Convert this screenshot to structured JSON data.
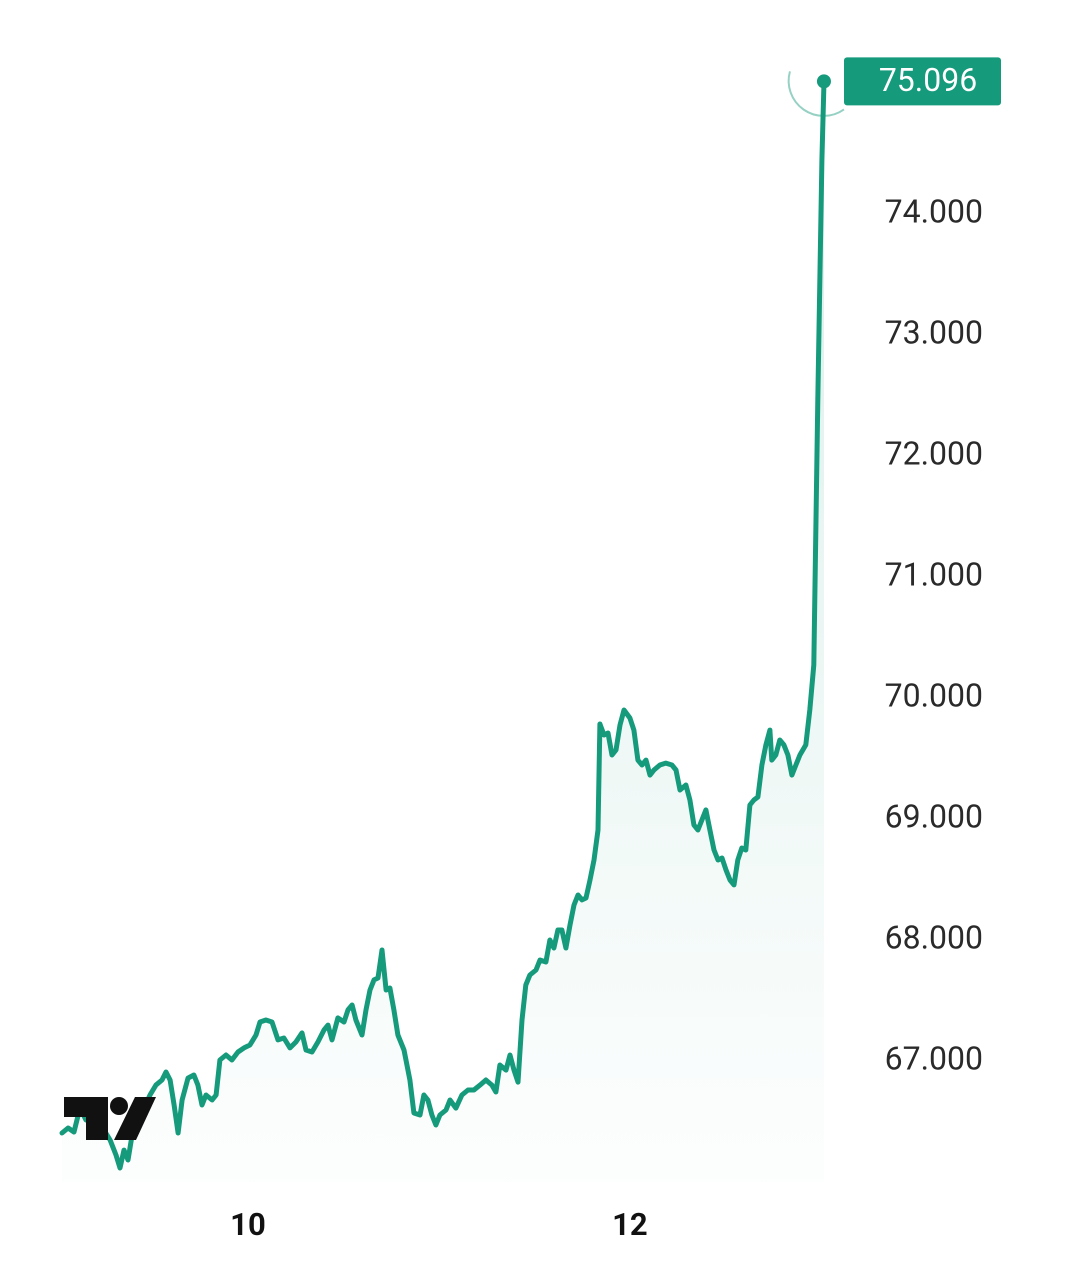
{
  "chart_data": {
    "type": "area",
    "x": [
      9.026,
      9.058,
      9.089,
      9.12,
      9.152,
      9.183,
      9.215,
      9.246,
      9.278,
      9.309,
      9.33,
      9.351,
      9.372,
      9.393,
      9.424,
      9.456,
      9.487,
      9.518,
      9.55,
      9.571,
      9.592,
      9.613,
      9.634,
      9.655,
      9.686,
      9.717,
      9.738,
      9.759,
      9.78,
      9.812,
      9.833,
      9.853,
      9.885,
      9.916,
      9.948,
      9.979,
      10.01,
      10.042,
      10.063,
      10.094,
      10.126,
      10.157,
      10.188,
      10.22,
      10.251,
      10.283,
      10.304,
      10.335,
      10.366,
      10.398,
      10.419,
      10.44,
      10.471,
      10.503,
      10.524,
      10.545,
      10.565,
      10.597,
      10.618,
      10.639,
      10.66,
      10.681,
      10.702,
      10.723,
      10.743,
      10.764,
      10.785,
      10.817,
      10.848,
      10.869,
      10.901,
      10.921,
      10.942,
      10.963,
      10.984,
      11.005,
      11.037,
      11.058,
      11.089,
      11.12,
      11.152,
      11.183,
      11.215,
      11.246,
      11.277,
      11.298,
      11.319,
      11.351,
      11.372,
      11.393,
      11.414,
      11.435,
      11.455,
      11.476,
      11.508,
      11.529,
      11.56,
      11.581,
      11.602,
      11.623,
      11.644,
      11.665,
      11.686,
      11.707,
      11.728,
      11.749,
      11.77,
      11.791,
      11.812,
      11.833,
      11.843,
      11.864,
      11.885,
      11.906,
      11.927,
      11.948,
      11.969,
      12.0,
      12.021,
      12.042,
      12.063,
      12.084,
      12.105,
      12.126,
      12.157,
      12.188,
      12.22,
      12.241,
      12.262,
      12.293,
      12.314,
      12.335,
      12.356,
      12.377,
      12.398,
      12.419,
      12.44,
      12.461,
      12.482,
      12.503,
      12.524,
      12.545,
      12.565,
      12.586,
      12.607,
      12.628,
      12.649,
      12.67,
      12.691,
      12.712,
      12.733,
      12.743,
      12.764,
      12.785,
      12.806,
      12.827,
      12.848,
      12.869,
      12.89,
      12.921,
      12.942,
      12.963,
      12.984,
      13.005,
      13.016
    ],
    "values": [
      66405,
      66446,
      66413,
      66611,
      66512,
      66595,
      66578,
      66430,
      66347,
      66223,
      66116,
      66264,
      66182,
      66388,
      66512,
      66611,
      66719,
      66801,
      66843,
      66909,
      66843,
      66636,
      66405,
      66678,
      66859,
      66884,
      66801,
      66636,
      66719,
      66678,
      66719,
      67008,
      67050,
      67008,
      67074,
      67108,
      67132,
      67215,
      67322,
      67339,
      67322,
      67174,
      67190,
      67108,
      67157,
      67232,
      67091,
      67074,
      67157,
      67256,
      67297,
      67174,
      67356,
      67322,
      67422,
      67463,
      67339,
      67215,
      67422,
      67587,
      67670,
      67686,
      67917,
      67587,
      67603,
      67422,
      67215,
      67091,
      66843,
      66570,
      66554,
      66719,
      66678,
      66554,
      66471,
      66554,
      66595,
      66678,
      66611,
      66719,
      66760,
      66760,
      66801,
      66843,
      66801,
      66744,
      66967,
      66925,
      67050,
      66925,
      66826,
      67339,
      67628,
      67711,
      67752,
      67835,
      67818,
      68000,
      67934,
      68083,
      68083,
      67934,
      68124,
      68289,
      68372,
      68331,
      68347,
      68496,
      68661,
      68909,
      69785,
      69694,
      69711,
      69529,
      69570,
      69777,
      69901,
      69835,
      69735,
      69487,
      69446,
      69487,
      69363,
      69405,
      69446,
      69462,
      69446,
      69405,
      69240,
      69281,
      69157,
      68951,
      68909,
      68992,
      69075,
      68909,
      68744,
      68661,
      68678,
      68579,
      68496,
      68455,
      68661,
      68760,
      68744,
      69116,
      69157,
      69182,
      69446,
      69612,
      69735,
      69487,
      69529,
      69653,
      69612,
      69529,
      69363,
      69446,
      69529,
      69612,
      69901,
      70273,
      72463,
      74446,
      75096
    ],
    "value_labels": [
      null,
      null,
      null,
      null,
      null,
      null,
      null,
      null,
      null,
      null,
      null,
      null,
      null,
      null,
      null,
      null,
      null,
      null,
      null,
      null,
      null,
      null,
      null,
      null,
      null,
      null,
      null,
      null,
      null,
      null,
      null,
      null,
      null,
      null,
      null,
      null,
      null,
      null,
      null,
      null,
      null,
      null,
      null,
      null,
      null,
      null,
      null,
      null,
      null,
      null,
      null,
      null,
      null,
      null,
      null,
      null,
      null,
      null,
      null,
      null,
      null,
      null,
      null,
      null,
      null,
      null,
      null,
      null,
      null,
      null,
      null,
      null,
      null,
      null,
      null,
      null,
      null,
      null,
      null,
      null,
      null,
      null,
      null,
      null,
      null,
      null,
      null,
      null,
      null,
      null,
      null,
      null,
      null,
      null,
      null,
      null,
      null,
      null,
      null,
      null,
      null,
      null,
      null,
      null,
      null,
      null,
      null,
      null,
      null,
      null,
      null,
      null,
      null,
      null,
      null,
      null,
      null,
      null,
      null,
      null,
      null,
      null,
      null,
      null,
      null,
      null,
      null,
      null,
      null,
      null,
      null,
      null,
      null,
      null,
      null,
      null,
      null,
      null,
      null,
      null,
      null,
      null,
      null,
      null,
      null,
      null,
      null,
      null,
      null,
      null,
      null,
      null,
      null,
      null,
      null,
      null,
      null,
      null,
      null,
      null,
      null,
      null,
      null,
      null,
      "75.096"
    ],
    "color": "#169a7c",
    "xlim": [
      9.0,
      13.1
    ],
    "xticks": [
      10,
      12
    ],
    "ylim": [
      66000,
      75300
    ],
    "yticks": [
      {
        "value": 67000,
        "label": "67.000"
      },
      {
        "value": 68000,
        "label": "68.000"
      },
      {
        "value": 69000,
        "label": "69.000"
      },
      {
        "value": 70000,
        "label": "70.000"
      },
      {
        "value": 71000,
        "label": "71.000"
      },
      {
        "value": 72000,
        "label": "72.000"
      },
      {
        "value": 73000,
        "label": "73.000"
      },
      {
        "value": 74000,
        "label": "74.000"
      }
    ],
    "grid": false
  }
}
